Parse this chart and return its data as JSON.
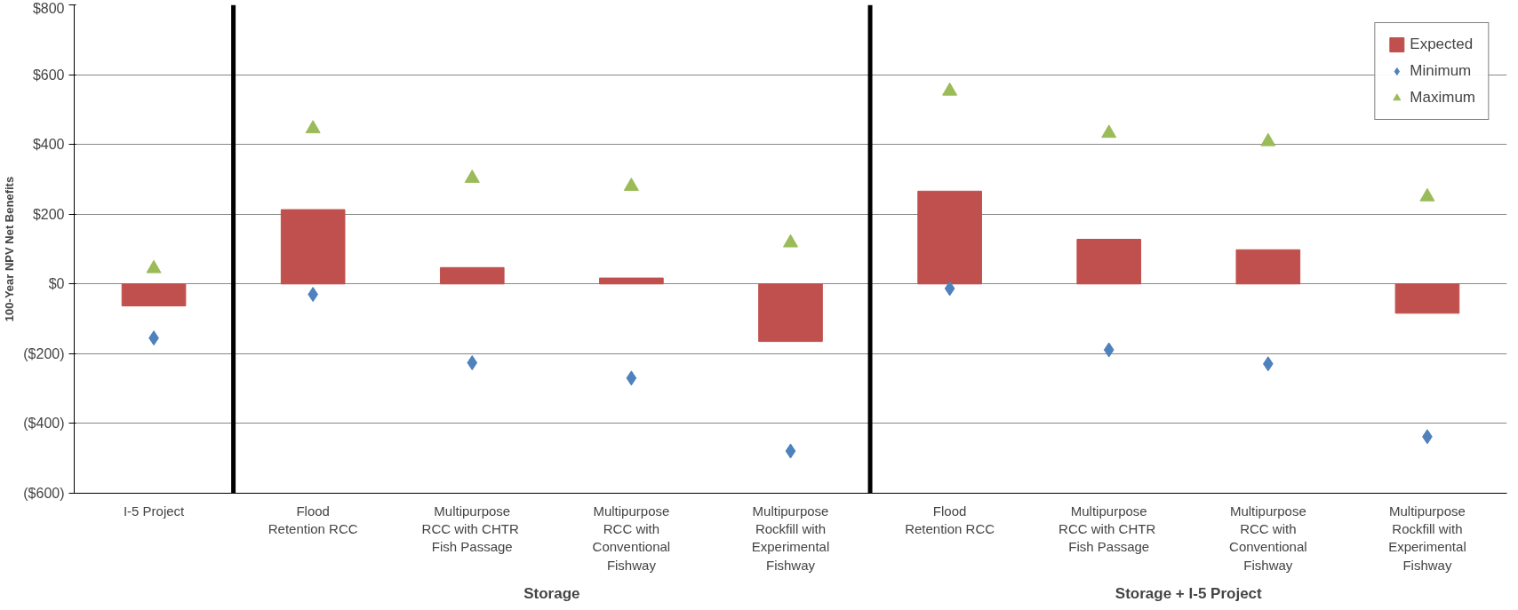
{
  "chart_data": {
    "type": "bar",
    "ylabel": "100-Year NPV Net Benefits",
    "categories": [
      "I-5 Project",
      "Flood\nRetention RCC",
      "Multipurpose\nRCC with  CHTR\nFish Passage",
      "Multipurpose\nRCC with\nConventional\nFishway",
      "Multipurpose\nRockfill with\nExperimental\nFishway",
      "Flood\nRetention RCC",
      "Multipurpose\nRCC with  CHTR\nFish Passage",
      "Multipurpose\nRCC with\nConventional\nFishway",
      "Multipurpose\nRockfill with\nExperimental\nFishway"
    ],
    "series": [
      {
        "name": "Expected",
        "color": "#c0504d",
        "values": [
          -63,
          213,
          47,
          17,
          -165,
          266,
          128,
          98,
          -84
        ]
      },
      {
        "name": "Minimum",
        "type": "scatter",
        "marker": "diamond",
        "color": "#4f81bd",
        "values": [
          -155,
          -30,
          -226,
          -270,
          -479,
          -13,
          -189,
          -229,
          -438
        ]
      },
      {
        "name": "Maximum",
        "type": "scatter",
        "marker": "triangle",
        "color": "#9bbb59",
        "values": [
          44,
          445,
          303,
          280,
          118,
          553,
          432,
          408,
          250
        ]
      }
    ],
    "ylim": [
      -600,
      800
    ],
    "yticks": [
      {
        "value": -600,
        "label": "($600)"
      },
      {
        "value": -400,
        "label": "($400)"
      },
      {
        "value": -200,
        "label": "($200)"
      },
      {
        "value": 0,
        "label": "$0"
      },
      {
        "value": 200,
        "label": "$200"
      },
      {
        "value": 400,
        "label": "$400"
      },
      {
        "value": 600,
        "label": "$600"
      },
      {
        "value": 800,
        "label": "$800"
      }
    ],
    "grid": "y",
    "legend": "top right",
    "annotations": [
      "Storage",
      "Storage + I-5 Project"
    ]
  }
}
